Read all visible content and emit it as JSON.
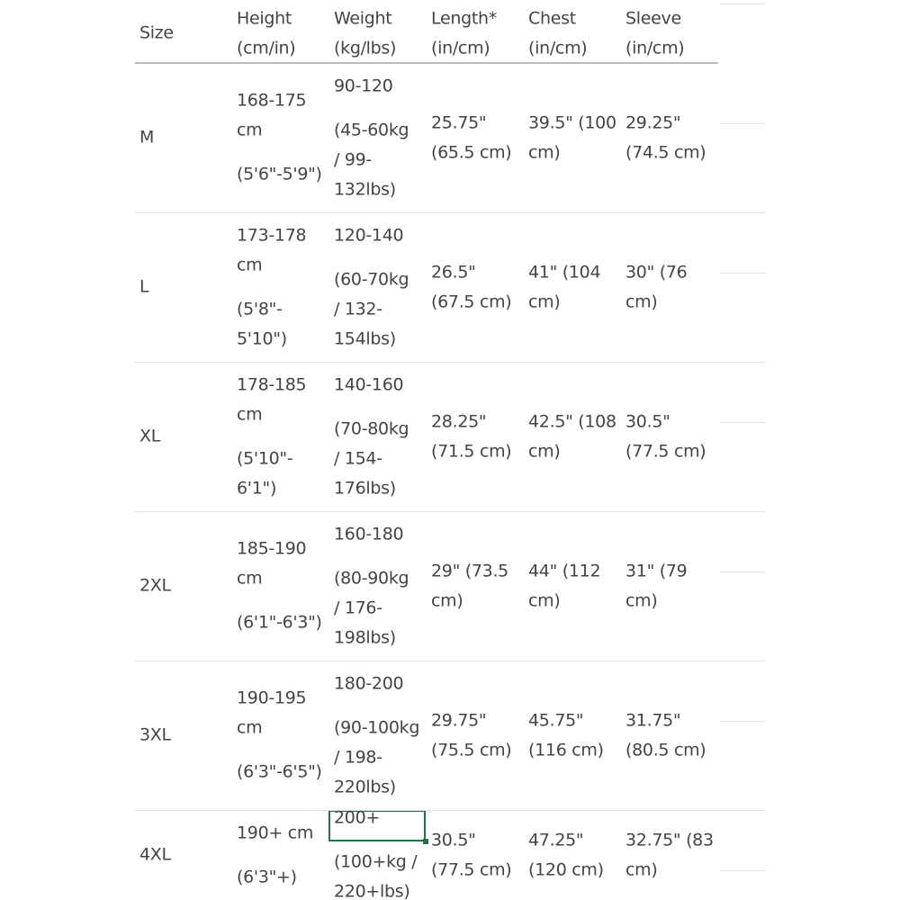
{
  "table": {
    "header": [
      [
        "Size"
      ],
      [
        "Height",
        "(cm/in)"
      ],
      [
        "Weight",
        "(kg/lbs)"
      ],
      [
        "Length*",
        "(in/cm)"
      ],
      [
        "Chest",
        "(in/cm)"
      ],
      [
        "Sleeve",
        "(in/cm)"
      ]
    ],
    "rows": [
      [
        [
          [
            "M"
          ]
        ],
        [
          [
            "168-175",
            "cm"
          ],
          [
            "(5'6\"-5'9\")"
          ]
        ],
        [
          [
            "90-120"
          ],
          [
            "(45-60kg",
            "/ 99-",
            "132lbs)"
          ]
        ],
        [
          [
            "25.75\"",
            "(65.5 cm)"
          ]
        ],
        [
          [
            "39.5\" (100",
            "cm)"
          ]
        ],
        [
          [
            "29.25\"",
            "(74.5 cm)"
          ]
        ]
      ],
      [
        [
          [
            "L"
          ]
        ],
        [
          [
            "173-178",
            "cm"
          ],
          [
            "(5'8\"-",
            "5'10\")"
          ]
        ],
        [
          [
            "120-140"
          ],
          [
            "(60-70kg",
            "/ 132-",
            "154lbs)"
          ]
        ],
        [
          [
            "26.5\"",
            "(67.5 cm)"
          ]
        ],
        [
          [
            "41\" (104",
            "cm)"
          ]
        ],
        [
          [
            "30\" (76",
            "cm)"
          ]
        ]
      ],
      [
        [
          [
            "XL"
          ]
        ],
        [
          [
            "178-185",
            "cm"
          ],
          [
            "(5'10\"-",
            "6'1\")"
          ]
        ],
        [
          [
            "140-160"
          ],
          [
            "(70-80kg",
            "/ 154-",
            "176lbs)"
          ]
        ],
        [
          [
            "28.25\"",
            "(71.5 cm)"
          ]
        ],
        [
          [
            "42.5\" (108",
            "cm)"
          ]
        ],
        [
          [
            "30.5\"",
            "(77.5 cm)"
          ]
        ]
      ],
      [
        [
          [
            "2XL"
          ]
        ],
        [
          [
            "185-190",
            "cm"
          ],
          [
            "(6'1\"-6'3\")"
          ]
        ],
        [
          [
            "160-180"
          ],
          [
            "(80-90kg",
            "/ 176-",
            "198lbs)"
          ]
        ],
        [
          [
            "29\" (73.5",
            "cm)"
          ]
        ],
        [
          [
            "44\" (112",
            "cm)"
          ]
        ],
        [
          [
            "31\" (79",
            "cm)"
          ]
        ]
      ],
      [
        [
          [
            "3XL"
          ]
        ],
        [
          [
            "190-195",
            "cm"
          ],
          [
            "(6'3\"-6'5\")"
          ]
        ],
        [
          [
            "180-200"
          ],
          [
            "(90-100kg",
            "/ 198-",
            "220lbs)"
          ]
        ],
        [
          [
            "29.75\"",
            "(75.5 cm)"
          ]
        ],
        [
          [
            "45.75\"",
            "(116 cm)"
          ]
        ],
        [
          [
            "31.75\"",
            "(80.5 cm)"
          ]
        ]
      ],
      [
        [
          [
            "4XL"
          ]
        ],
        [
          [
            "190+ cm"
          ],
          [
            "(6'3\"+)"
          ]
        ],
        [
          [
            "200+"
          ],
          [
            "(100+kg /",
            "220+lbs)"
          ]
        ],
        [
          [
            "30.5\"",
            "(77.5 cm)"
          ]
        ],
        [
          [
            "47.25\"",
            "(120 cm)"
          ]
        ],
        [
          [
            "32.75\" (83",
            "cm)"
          ]
        ]
      ]
    ]
  }
}
